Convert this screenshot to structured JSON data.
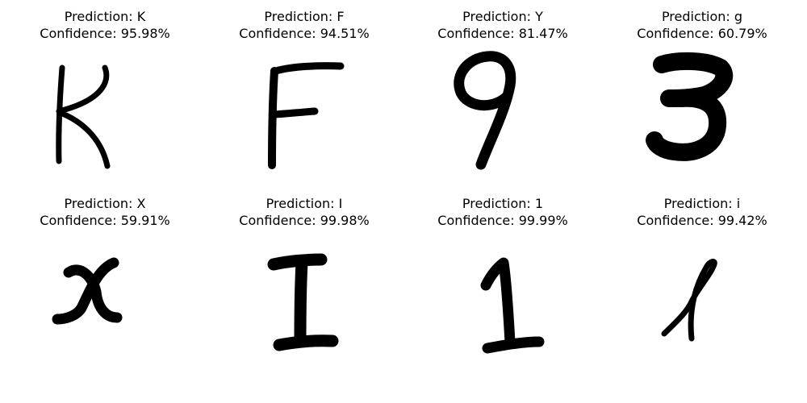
{
  "panels": [
    {
      "prediction": "Prediction: K",
      "confidence": "Confidence: 95.98%",
      "glyph": "K-letter-image"
    },
    {
      "prediction": "Prediction: F",
      "confidence": "Confidence: 94.51%",
      "glyph": "F-letter-image"
    },
    {
      "prediction": "Prediction: Y",
      "confidence": "Confidence: 81.47%",
      "glyph": "9-digit-image"
    },
    {
      "prediction": "Prediction: g",
      "confidence": "Confidence: 60.79%",
      "glyph": "3-digit-image"
    },
    {
      "prediction": "Prediction: X",
      "confidence": "Confidence: 59.91%",
      "glyph": "x-letter-image"
    },
    {
      "prediction": "Prediction: I",
      "confidence": "Confidence: 99.98%",
      "glyph": "I-letter-image"
    },
    {
      "prediction": "Prediction: 1",
      "confidence": "Confidence: 99.99%",
      "glyph": "1-digit-image"
    },
    {
      "prediction": "Prediction: i",
      "confidence": "Confidence: 99.42%",
      "glyph": "l-letter-image"
    }
  ],
  "colors": {
    "ink": "#000000",
    "background": "#ffffff"
  }
}
